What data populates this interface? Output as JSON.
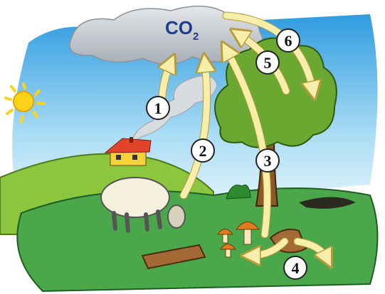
{
  "cloud_label": {
    "text": "CO",
    "subscript": "2"
  },
  "step_labels": [
    "1",
    "2",
    "3",
    "4",
    "5",
    "6"
  ]
}
